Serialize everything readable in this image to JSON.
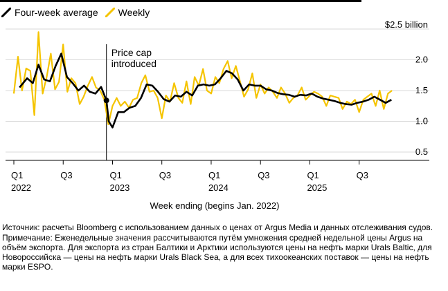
{
  "legend": {
    "items": [
      {
        "label": "Four-week average",
        "color": "#000000"
      },
      {
        "label": "Weekly",
        "color": "#f5c400"
      }
    ]
  },
  "chart_data": {
    "type": "line",
    "title": "",
    "xlabel": "Week ending (begins Jan. 2022)",
    "ylabel": "$ billion",
    "ylim": [
      0.5,
      2.5
    ],
    "yticks": [
      0.5,
      1.0,
      1.5,
      2.0,
      2.5
    ],
    "ytick_labels": [
      "0.5",
      "1.0",
      "1.5",
      "2.0",
      "$2.5 billion"
    ],
    "xlim": [
      0,
      200
    ],
    "xticks": [
      {
        "x": 0,
        "label": "Q1",
        "year": "2022"
      },
      {
        "x": 26,
        "label": "Q3",
        "year": ""
      },
      {
        "x": 52,
        "label": "Q1",
        "year": "2023"
      },
      {
        "x": 78,
        "label": "Q3",
        "year": ""
      },
      {
        "x": 104,
        "label": "Q1",
        "year": "2024"
      },
      {
        "x": 130,
        "label": "Q3",
        "year": ""
      },
      {
        "x": 156,
        "label": "Q1",
        "year": "2025"
      },
      {
        "x": 182,
        "label": "Q3",
        "year": ""
      }
    ],
    "annotation": {
      "x": 48.8,
      "lines": [
        "Price cap",
        "introduced"
      ]
    },
    "marker": {
      "x": 48.8,
      "y": 1.34
    },
    "series": [
      {
        "name": "Weekly",
        "color": "#f5c400",
        "x": [
          0,
          2.2,
          4.3,
          6.5,
          8.7,
          10.8,
          13.0,
          15.2,
          17.3,
          19.5,
          21.7,
          23.8,
          26.0,
          28.2,
          30.3,
          32.5,
          34.7,
          36.8,
          39.0,
          41.2,
          43.3,
          45.5,
          47.7,
          49.8,
          52.0,
          54.2,
          56.3,
          58.5,
          60.7,
          62.8,
          65.0,
          67.2,
          69.3,
          71.5,
          73.7,
          75.8,
          78.0,
          80.2,
          82.3,
          84.5,
          86.7,
          88.8,
          91.0,
          93.2,
          95.3,
          97.5,
          99.7,
          101.8,
          104.0,
          106.2,
          108.3,
          110.5,
          112.7,
          114.8,
          117.0,
          119.2,
          121.3,
          123.5,
          125.7,
          127.8,
          130.0,
          132.2,
          134.3,
          136.5,
          138.7,
          140.8,
          143.0,
          145.2,
          147.3,
          149.5,
          151.7,
          153.8,
          156.0,
          158.2,
          160.3,
          162.5,
          164.7,
          166.8,
          169.0,
          171.2,
          173.3,
          175.5,
          177.7,
          179.8,
          182.0,
          184.2,
          186.3,
          188.5,
          190.7,
          192.8,
          195.0,
          197.2,
          199.3
        ],
        "values": [
          1.45,
          2.05,
          1.5,
          1.86,
          1.82,
          1.1,
          2.45,
          1.45,
          1.72,
          2.1,
          1.52,
          1.64,
          2.25,
          1.48,
          1.7,
          1.62,
          1.28,
          1.4,
          1.58,
          1.72,
          1.55,
          1.5,
          1.35,
          0.95,
          1.25,
          1.38,
          1.25,
          1.32,
          1.22,
          1.35,
          1.38,
          1.62,
          1.75,
          1.48,
          1.5,
          1.38,
          1.05,
          1.42,
          1.32,
          1.62,
          1.38,
          1.3,
          1.65,
          1.28,
          1.72,
          1.58,
          1.85,
          1.5,
          1.45,
          1.72,
          1.62,
          1.85,
          1.98,
          1.7,
          1.9,
          1.65,
          1.4,
          1.52,
          1.78,
          1.38,
          1.6,
          1.45,
          1.55,
          1.48,
          1.38,
          1.55,
          1.45,
          1.3,
          1.38,
          1.42,
          1.55,
          1.35,
          1.42,
          1.48,
          1.45,
          1.4,
          1.25,
          1.42,
          1.4,
          1.38,
          1.2,
          1.32,
          1.28,
          1.35,
          1.15,
          1.35,
          1.4,
          1.45,
          1.25,
          1.5,
          1.2,
          1.45,
          1.5
        ]
      },
      {
        "name": "Four-week average",
        "color": "#000000",
        "x": [
          3,
          7,
          10,
          13,
          16,
          19,
          22,
          25,
          28,
          31,
          34,
          37,
          40,
          43,
          46,
          48.8,
          50,
          52,
          55,
          58,
          61,
          64,
          67,
          70,
          73,
          76,
          79,
          82,
          85,
          88,
          91,
          94,
          97,
          100,
          103,
          106,
          109,
          112,
          115,
          118,
          121,
          124,
          127,
          130,
          133,
          136,
          139,
          142,
          145,
          148,
          151,
          154,
          157,
          160,
          163,
          166,
          169,
          172,
          175,
          178,
          181,
          184,
          187,
          190,
          193,
          196,
          199
        ],
        "values": [
          1.55,
          1.7,
          1.62,
          1.92,
          1.68,
          1.65,
          1.9,
          2.1,
          1.72,
          1.62,
          1.5,
          1.58,
          1.48,
          1.45,
          1.56,
          1.34,
          1.0,
          0.9,
          1.15,
          1.15,
          1.22,
          1.25,
          1.38,
          1.6,
          1.58,
          1.48,
          1.36,
          1.32,
          1.42,
          1.4,
          1.48,
          1.42,
          1.58,
          1.6,
          1.58,
          1.6,
          1.7,
          1.82,
          1.78,
          1.68,
          1.5,
          1.6,
          1.58,
          1.58,
          1.52,
          1.5,
          1.46,
          1.44,
          1.43,
          1.4,
          1.43,
          1.42,
          1.45,
          1.4,
          1.37,
          1.35,
          1.33,
          1.3,
          1.28,
          1.27,
          1.3,
          1.32,
          1.35,
          1.4,
          1.35,
          1.3,
          1.35
        ]
      }
    ]
  },
  "footnotes": {
    "source": "Источник: расчеты Bloomberg с использованием данных о ценах от Argus Media и данных отслеживания судов.",
    "note": "Примечание: Еженедельные значения рассчитываются путём умножения средней недельной цены Argus на объём экспорта. Для экспорта из стран Балтики и Арктики используются цены на нефть марки Urals Baltic, для Новороссийска — цены на нефть марки Urals Black Sea, а для всех тихоокеанских поставок — цены на нефть марки ESPO."
  }
}
